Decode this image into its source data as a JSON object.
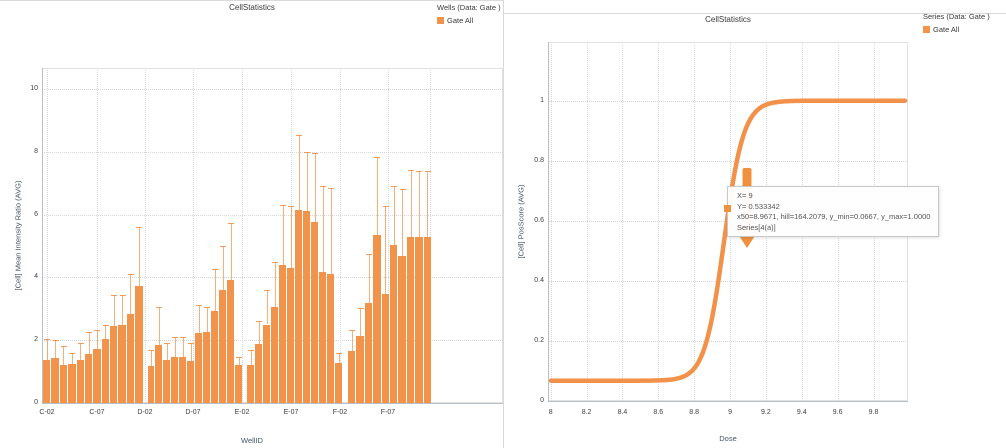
{
  "panels": {
    "left": {
      "title": "CellStatistics",
      "legend_header": "Wells (Data: Gate )",
      "legend_item": "Gate All",
      "x_axis_title": "WellID",
      "y_axis_title": "[Cell] Mean Intensity Ratio (AVG)"
    },
    "right": {
      "title": "CellStatistics",
      "legend_header": "Series (Data: Gate )",
      "legend_item": "Gate All",
      "x_axis_title": "Dose",
      "y_axis_title": "[Cell] PosScore (AVG)",
      "tooltip": {
        "line1": "X= 9",
        "line2": "Y= 0.533342",
        "line3": "x50=8.9671, hill=164.2079, y_min=0.0667, y_max=1.0000",
        "line4": "Series[4(a)]"
      }
    }
  },
  "colors": {
    "bar": "#f2934c",
    "whisker": "#f5a96b",
    "curve": "#f2924a",
    "arrow": "#f0913f",
    "grid": "#d6d6d6",
    "axis_text": "#3f3f3f",
    "axis_label": "#44546a"
  },
  "chart_data": [
    {
      "type": "bar",
      "title": "CellStatistics",
      "xlabel": "WellID",
      "ylabel": "[Cell] Mean Intensity Ratio (AVG)",
      "series_name": "Gate All",
      "legend_position": "top-right",
      "grid": true,
      "y_ticks": [
        0,
        2,
        4,
        6,
        8,
        10
      ],
      "ylim": [
        0,
        10.7
      ],
      "x_tick_labels": [
        "C-02",
        "C-07",
        "D-02",
        "D-07",
        "E-02",
        "E-07",
        "F-02",
        "F-07"
      ],
      "error_bars": "upper",
      "groups": [
        {
          "row": "C",
          "values": [
            1.38,
            1.42,
            1.2,
            1.24,
            1.38,
            1.56,
            1.72,
            2.05,
            2.44,
            2.49,
            2.83,
            3.72
          ],
          "errors_upper": [
            2.03,
            2.0,
            1.8,
            1.58,
            1.92,
            2.25,
            2.34,
            2.49,
            3.43,
            3.43,
            4.1,
            5.6
          ]
        },
        {
          "row": "D",
          "values": [
            1.17,
            1.84,
            1.38,
            1.48,
            1.47,
            1.35,
            2.23,
            2.26,
            2.93,
            3.59,
            3.91,
            1.2
          ],
          "errors_upper": [
            1.69,
            3.07,
            1.92,
            2.1,
            2.1,
            1.9,
            3.12,
            3.07,
            4.28,
            5.0,
            5.72,
            1.45
          ]
        },
        {
          "row": "E",
          "values": [
            1.2,
            1.87,
            2.5,
            3.07,
            4.4,
            4.3,
            6.15,
            6.1,
            5.75,
            4.16,
            4.11,
            1.28
          ],
          "errors_upper": [
            1.7,
            2.6,
            3.6,
            4.5,
            6.3,
            6.28,
            8.55,
            8.0,
            7.95,
            6.9,
            6.85,
            1.6
          ]
        },
        {
          "row": "F",
          "values": [
            1.66,
            2.13,
            3.2,
            5.35,
            3.46,
            5.02,
            4.68,
            5.28,
            5.28,
            5.28
          ],
          "errors_upper": [
            2.33,
            3.01,
            4.73,
            7.83,
            6.27,
            6.92,
            6.81,
            7.42,
            7.39,
            7.4
          ]
        }
      ]
    },
    {
      "type": "line",
      "title": "CellStatistics",
      "xlabel": "Dose",
      "ylabel": "[Cell] PosScore (AVG)",
      "series_name": "Gate All",
      "legend_position": "top-right",
      "grid": true,
      "x_ticks": [
        8,
        8.2,
        8.4,
        8.6,
        8.8,
        9,
        9.2,
        9.4,
        9.6,
        9.8
      ],
      "xlim": [
        8,
        10
      ],
      "y_ticks": [
        0,
        0.2,
        0.4,
        0.6,
        0.8,
        1
      ],
      "ylim": [
        0,
        1.2
      ],
      "fit": {
        "x50": 8.9671,
        "hill": 164.2079,
        "y_min": 0.0667,
        "y_max": 1.0
      },
      "highlight_point": {
        "x": 9,
        "y": 0.533342
      }
    }
  ]
}
